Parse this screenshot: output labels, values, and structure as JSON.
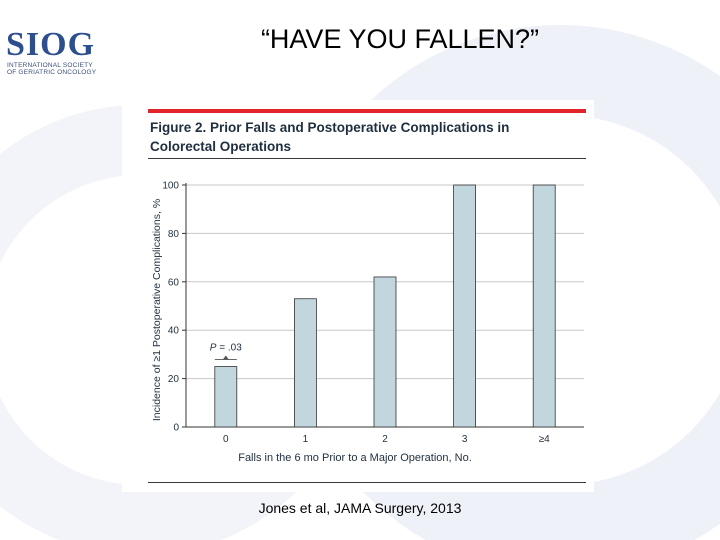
{
  "slide_title": "“HAVE YOU FALLEN?”",
  "logo": {
    "word": "SIOG",
    "line1": "INTERNATIONAL SOCIETY",
    "line2": "OF GERIATRIC ONCOLOGY",
    "color": "#2d4f8e"
  },
  "citation": "Jones et al, JAMA Surgery, 2013",
  "colors": {
    "bar_fill": "#c2d6dd",
    "bar_stroke": "#333333",
    "grid": "#c8c8c8",
    "accent_bar": "#e2242a",
    "background_shape": "#eef1f8"
  },
  "chart_data": {
    "type": "bar",
    "title": "Figure 2. Prior Falls and Postoperative Complications in Colorectal Operations",
    "categories": [
      "0",
      "1",
      "2",
      "3",
      "≥4"
    ],
    "values": [
      25,
      53,
      62,
      100,
      100
    ],
    "xlabel": "Falls in the 6 mo Prior to a Major Operation, No.",
    "ylabel": "Incidence of ≥1 Postoperative Complications, %",
    "ylim": [
      0,
      100
    ],
    "yticks": [
      0,
      20,
      40,
      60,
      80,
      100
    ],
    "grid": true,
    "annotation": {
      "italic": "P",
      "text": " = .03",
      "category": "0"
    }
  }
}
